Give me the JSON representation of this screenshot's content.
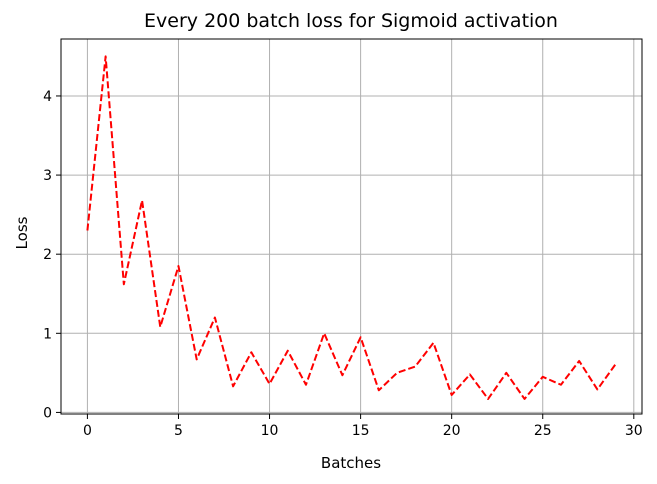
{
  "chart_data": {
    "type": "line",
    "title": "Every 200 batch loss for Sigmoid activation",
    "xlabel": "Batches",
    "ylabel": "Loss",
    "xlim": [
      -1.45,
      30.45
    ],
    "ylim": [
      -0.02,
      4.72
    ],
    "xticks": [
      0,
      5,
      10,
      15,
      20,
      25,
      30
    ],
    "yticks": [
      0,
      1,
      2,
      3,
      4
    ],
    "grid": true,
    "series": [
      {
        "color": "#ff0000",
        "linestyle": "dashed",
        "x": [
          0,
          1,
          2,
          3,
          4,
          5,
          6,
          7,
          8,
          9,
          10,
          11,
          12,
          13,
          14,
          15,
          16,
          17,
          18,
          19,
          20,
          21,
          22,
          23,
          24,
          25,
          26,
          27,
          28,
          29
        ],
        "y": [
          2.3,
          4.5,
          1.62,
          2.68,
          1.08,
          1.85,
          0.67,
          1.2,
          0.33,
          0.76,
          0.36,
          0.78,
          0.35,
          1.0,
          0.47,
          0.95,
          0.28,
          0.5,
          0.58,
          0.88,
          0.22,
          0.48,
          0.17,
          0.5,
          0.17,
          0.45,
          0.35,
          0.65,
          0.29,
          0.61
        ]
      }
    ]
  }
}
